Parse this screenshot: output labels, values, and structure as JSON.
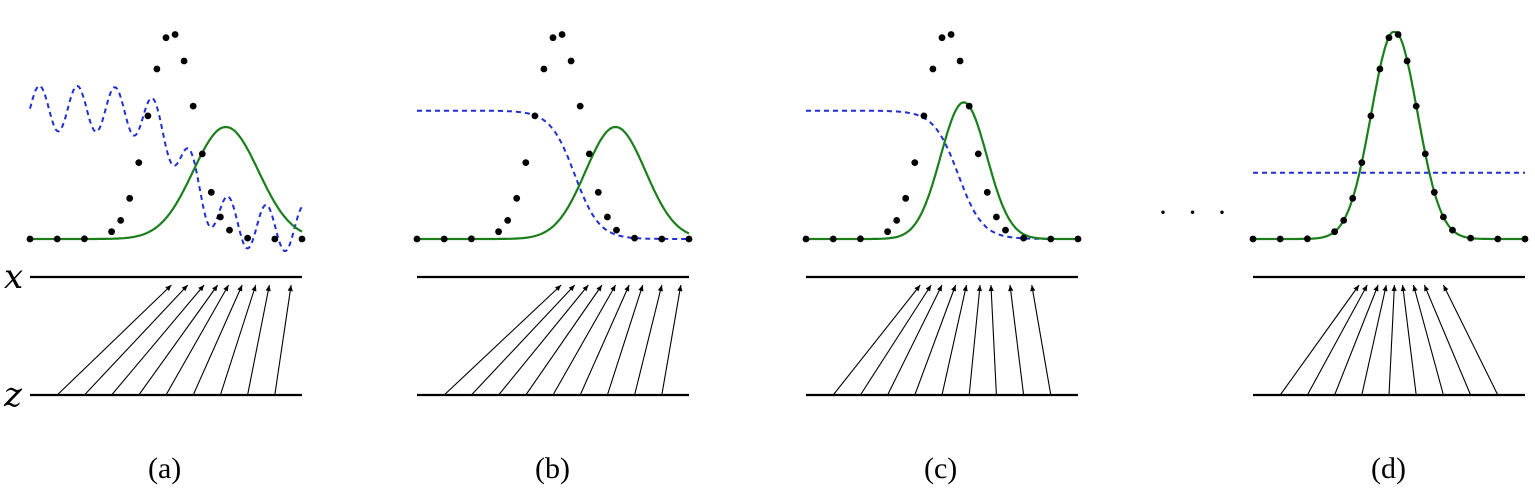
{
  "labels": {
    "x_axis": "x",
    "z_axis": "z",
    "ellipsis": "· · ·"
  },
  "colors": {
    "data": "#000000",
    "generative": "#1a7f1a",
    "discriminator": "#1f2fd6"
  },
  "panels": [
    {
      "id": "a",
      "caption": "(a)",
      "disc_type": "wavy",
      "gen_mean": 0.72,
      "gen_sd": 0.12,
      "gen_peak": 0.82,
      "arrow_targets": [
        0.52,
        0.58,
        0.64,
        0.69,
        0.73,
        0.78,
        0.83,
        0.88,
        0.96
      ]
    },
    {
      "id": "b",
      "caption": "(b)",
      "disc_type": "sigmoid",
      "gen_mean": 0.73,
      "gen_sd": 0.11,
      "gen_peak": 0.82,
      "arrow_targets": [
        0.53,
        0.58,
        0.63,
        0.68,
        0.73,
        0.78,
        0.83,
        0.9,
        0.97
      ]
    },
    {
      "id": "c",
      "caption": "(c)",
      "disc_type": "sigmoid_left",
      "gen_mean": 0.58,
      "gen_sd": 0.085,
      "gen_peak": 1.0,
      "arrow_targets": [
        0.42,
        0.46,
        0.5,
        0.55,
        0.59,
        0.64,
        0.68,
        0.75,
        0.83
      ]
    },
    {
      "id": "d",
      "caption": "(d)",
      "disc_type": "flat",
      "gen_mean": 0.52,
      "gen_sd": 0.085,
      "gen_peak": 1.17,
      "arrow_targets": [
        0.39,
        0.42,
        0.46,
        0.49,
        0.52,
        0.55,
        0.59,
        0.63,
        0.7
      ]
    }
  ]
}
